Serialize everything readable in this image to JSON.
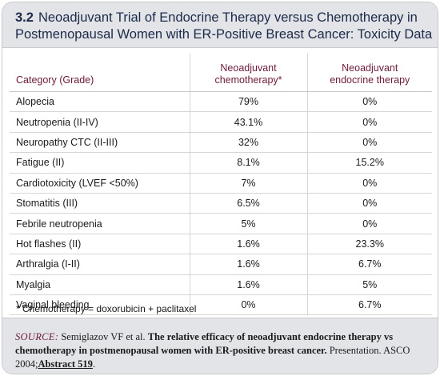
{
  "figure": {
    "number": "3.2",
    "title_line1": "Neoadjuvant Trial of Endocrine Therapy versus Chemotherapy in",
    "title_line2": "Postmenopausal Women with ER-Positive Breast Cancer: Toxicity Data"
  },
  "table": {
    "header": {
      "category": "Category (Grade)",
      "chemo_line1": "Neoadjuvant",
      "chemo_line2": "chemotherapy*",
      "endo_line1": "Neoadjuvant",
      "endo_line2": "endocrine therapy"
    },
    "rows": [
      {
        "category": "Alopecia",
        "chemo": "79%",
        "endo": "0%"
      },
      {
        "category": "Neutropenia (II-IV)",
        "chemo": "43.1%",
        "endo": "0%"
      },
      {
        "category": "Neuropathy CTC (II-III)",
        "chemo": "32%",
        "endo": "0%"
      },
      {
        "category": "Fatigue (II)",
        "chemo": "8.1%",
        "endo": "15.2%"
      },
      {
        "category": "Cardiotoxicity (LVEF <50%)",
        "chemo": "7%",
        "endo": "0%"
      },
      {
        "category": "Stomatitis (III)",
        "chemo": "6.5%",
        "endo": "0%"
      },
      {
        "category": "Febrile neutropenia",
        "chemo": "5%",
        "endo": "0%"
      },
      {
        "category": "Hot flashes (II)",
        "chemo": "1.6%",
        "endo": "23.3%"
      },
      {
        "category": "Arthralgia (I-II)",
        "chemo": "1.6%",
        "endo": "6.7%"
      },
      {
        "category": "Myalgia",
        "chemo": "1.6%",
        "endo": "5%"
      },
      {
        "category": "Vaginal bleeding",
        "chemo": "0%",
        "endo": "6.7%"
      }
    ],
    "footnote": "* Chemotherapy = doxorubicin + paclitaxel"
  },
  "source": {
    "label": "SOURCE:",
    "authors": "Semiglazov VF et al.",
    "title": "The relative efficacy of neoadjuvant endocrine therapy vs chemotherapy in postmenopausal women with ER-positive breast cancer.",
    "venue": "Presentation. ASCO 2004;",
    "abstract_link": "Abstract 519",
    "end": "."
  },
  "colors": {
    "header_bg": "#e3e4e8",
    "title_text": "#1c2a4a",
    "column_header_text": "#6e1a3a",
    "border": "#c9c9cc"
  }
}
